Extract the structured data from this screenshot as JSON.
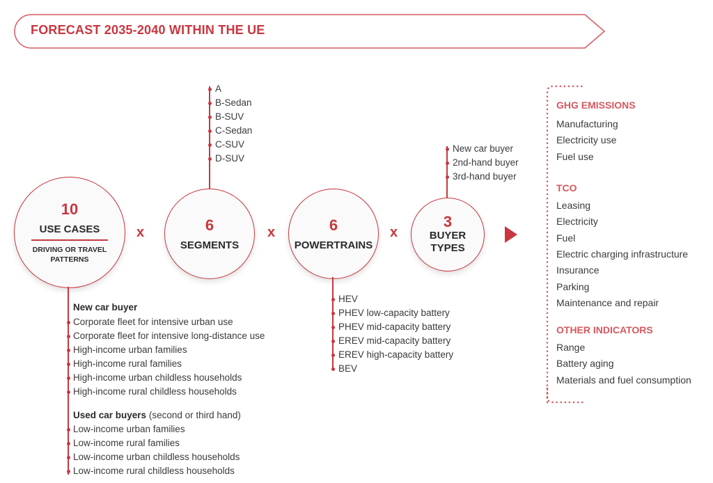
{
  "banner": {
    "title": "FORECAST 2035-2040  WITHIN THE UE"
  },
  "colors": {
    "accent": "#c8373f",
    "heading": "#d6585f",
    "text": "#3a3a3a"
  },
  "operator": "x",
  "circles": {
    "use_cases": {
      "number": "10",
      "label": "USE CASES",
      "sublabel": "DRIVING OR TRAVEL PATTERNS"
    },
    "segments": {
      "number": "6",
      "label": "SEGMENTS"
    },
    "powertrains": {
      "number": "6",
      "label": "POWERTRAINS"
    },
    "buyer_types": {
      "number": "3",
      "label": "BUYER TYPES"
    }
  },
  "segments": [
    "A",
    "B-Sedan",
    "B-SUV",
    "C-Sedan",
    "C-SUV",
    "D-SUV"
  ],
  "buyer_types": [
    "New car buyer",
    "2nd-hand buyer",
    "3rd-hand buyer"
  ],
  "powertrains": [
    "HEV",
    "PHEV low-capacity battery",
    "PHEV mid-capacity battery",
    "EREV mid-capacity battery",
    "EREV high-capacity battery",
    "BEV"
  ],
  "use_cases": {
    "new_header": "New car buyer",
    "new_items": [
      "Corporate fleet for intensive urban use",
      "Corporate fleet for intensive long-distance use",
      "High-income urban families",
      "High-income rural families",
      "High-income urban childless households",
      "High-income rural childless households"
    ],
    "used_header": "Used car buyers",
    "used_header_note": "(second or third hand)",
    "used_items": [
      "Low-income urban families",
      "Low-income rural families",
      "Low-income urban childless households",
      "Low-income rural childless households"
    ]
  },
  "outputs": {
    "ghg": {
      "title": "GHG EMISSIONS",
      "items": [
        "Manufacturing",
        "Electricity use",
        "Fuel use"
      ]
    },
    "tco": {
      "title": "TCO",
      "items": [
        "Leasing",
        "Electricity",
        "Fuel",
        "Electric charging infrastructure",
        "Insurance",
        "Parking",
        "Maintenance and repair"
      ]
    },
    "other": {
      "title": "OTHER INDICATORS",
      "items": [
        "Range",
        "Battery aging",
        "Materials and fuel consumption"
      ]
    }
  }
}
